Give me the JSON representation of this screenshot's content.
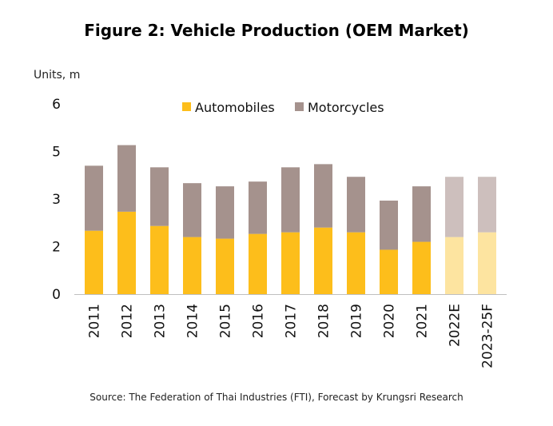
{
  "title": "Figure 2: Vehicle Production  (OEM Market)",
  "source": "Source: The Federation of Thai Industries (FTI), Forecast by Krungsri Research",
  "colors": {
    "automobiles": "#FDBE1B",
    "motorcycles": "#A5928D",
    "automobiles_forecast": "#FDE4A0",
    "motorcycles_forecast": "#CDBFBD"
  },
  "chart_data": {
    "type": "bar",
    "stacked": true,
    "ylabel": "Units, m",
    "ytick_labels": [
      "0",
      "2",
      "3",
      "5",
      "6"
    ],
    "ytick_values": [
      0,
      1.5,
      3.0,
      4.5,
      6.0
    ],
    "ylim": [
      0,
      6.0
    ],
    "legend_position": "top",
    "categories": [
      "2011",
      "2012",
      "2013",
      "2014",
      "2015",
      "2016",
      "2017",
      "2018",
      "2019",
      "2020",
      "2021",
      "2022E",
      "2023-25F"
    ],
    "forecast_categories": [
      "2022E",
      "2023-25F"
    ],
    "series": [
      {
        "name": "Automobiles",
        "values": [
          2.0,
          2.6,
          2.15,
          1.8,
          1.75,
          1.9,
          1.95,
          2.1,
          1.95,
          1.4,
          1.65,
          1.8,
          1.95
        ]
      },
      {
        "name": "Motorcycles",
        "values": [
          2.05,
          2.1,
          1.85,
          1.7,
          1.65,
          1.65,
          2.05,
          2.0,
          1.75,
          1.55,
          1.75,
          1.9,
          1.75
        ]
      }
    ]
  }
}
